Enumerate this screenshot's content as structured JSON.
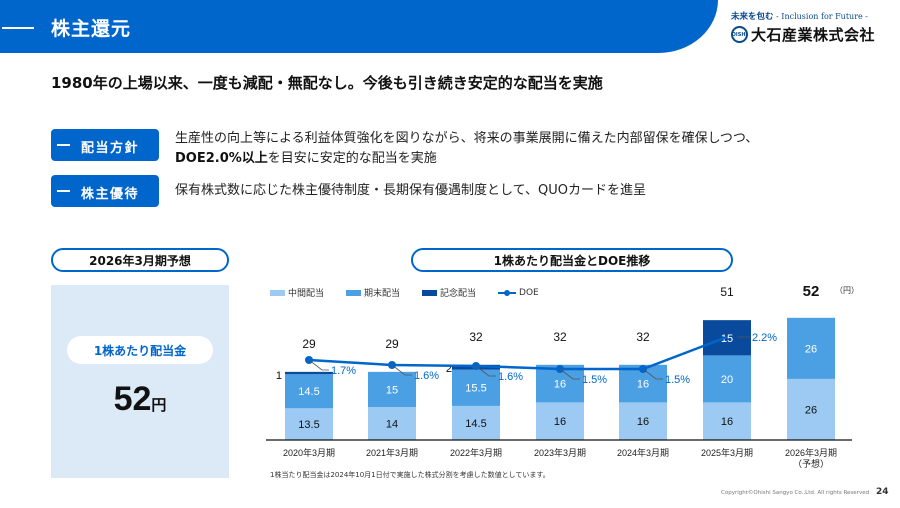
{
  "header": {
    "title": "株主還元",
    "tagline_jp": "未来を包む",
    "tagline_en": " - Inclusion for Future -",
    "logo_mark": "OISHI",
    "company_name": "大石産業株式会社"
  },
  "headline": "1980年の上場以来、一度も減配・無配なし。今後も引き続き安定的な配当を実施",
  "policies": [
    {
      "tag": "配当方針",
      "line1": "生産性の向上等による利益体質強化を図りながら、将来の事業展開に備えた内部留保を確保しつつ、",
      "line2_bold": "DOE2.0%以上",
      "line2_rest": "を目安に安定的な配当を実施"
    },
    {
      "tag": "株主優待",
      "line1": "保有株式数に応じた株主優待制度・長期保有優遇制度として、QUOカードを進呈"
    }
  ],
  "forecast": {
    "title": "2026年3月期予想",
    "label": "1株あたり配当金",
    "value": "52",
    "unit": "円"
  },
  "chart_title": "1株あたり配当金とDOE推移",
  "unit_label": "（円）",
  "colors": {
    "brand": "#0066cc",
    "interim": "#9ccaf2",
    "year_end": "#4b9fe3",
    "commemorative": "#0a4a9c",
    "doe_line": "#0066cc",
    "forecast_bg": "#dce9f7"
  },
  "chart_data": {
    "type": "bar",
    "title": "1株あたり配当金とDOE推移",
    "xlabel": "",
    "ylabel": "（円）",
    "categories": [
      "2020年3月期",
      "2021年3月期",
      "2022年3月期",
      "2023年3月期",
      "2024年3月期",
      "2025年3月期",
      "2026年3月期\n（予想）"
    ],
    "series": [
      {
        "name": "中間配当",
        "type": "stacked-bar",
        "values": [
          13.5,
          14,
          14.5,
          16,
          16,
          16,
          26
        ]
      },
      {
        "name": "期末配当",
        "type": "stacked-bar",
        "values": [
          14.5,
          15,
          15.5,
          16,
          16,
          20,
          26
        ]
      },
      {
        "name": "記念配当",
        "type": "stacked-bar",
        "values": [
          1,
          0,
          2,
          0,
          0,
          15,
          0
        ]
      },
      {
        "name": "DOE",
        "type": "line",
        "unit": "%",
        "values": [
          1.7,
          1.6,
          1.6,
          1.5,
          1.5,
          2.2,
          null
        ]
      }
    ],
    "totals": [
      29,
      29,
      32,
      32,
      32,
      51,
      52
    ],
    "legend": [
      "中間配当",
      "期末配当",
      "記念配当",
      "DOE"
    ],
    "legend_position": "top-left",
    "grid": false
  },
  "legend": {
    "interim": "中間配当",
    "year_end": "期末配当",
    "commemorative": "記念配当",
    "doe": "DOE"
  },
  "footnote": "1株当たり配当金は2024年10月1日付で実施した株式分割を考慮した数値としています。",
  "copyright": "Copyright©Ohishi Sangyo Co.,Ltd. All rights Reserved",
  "page_number": "24"
}
